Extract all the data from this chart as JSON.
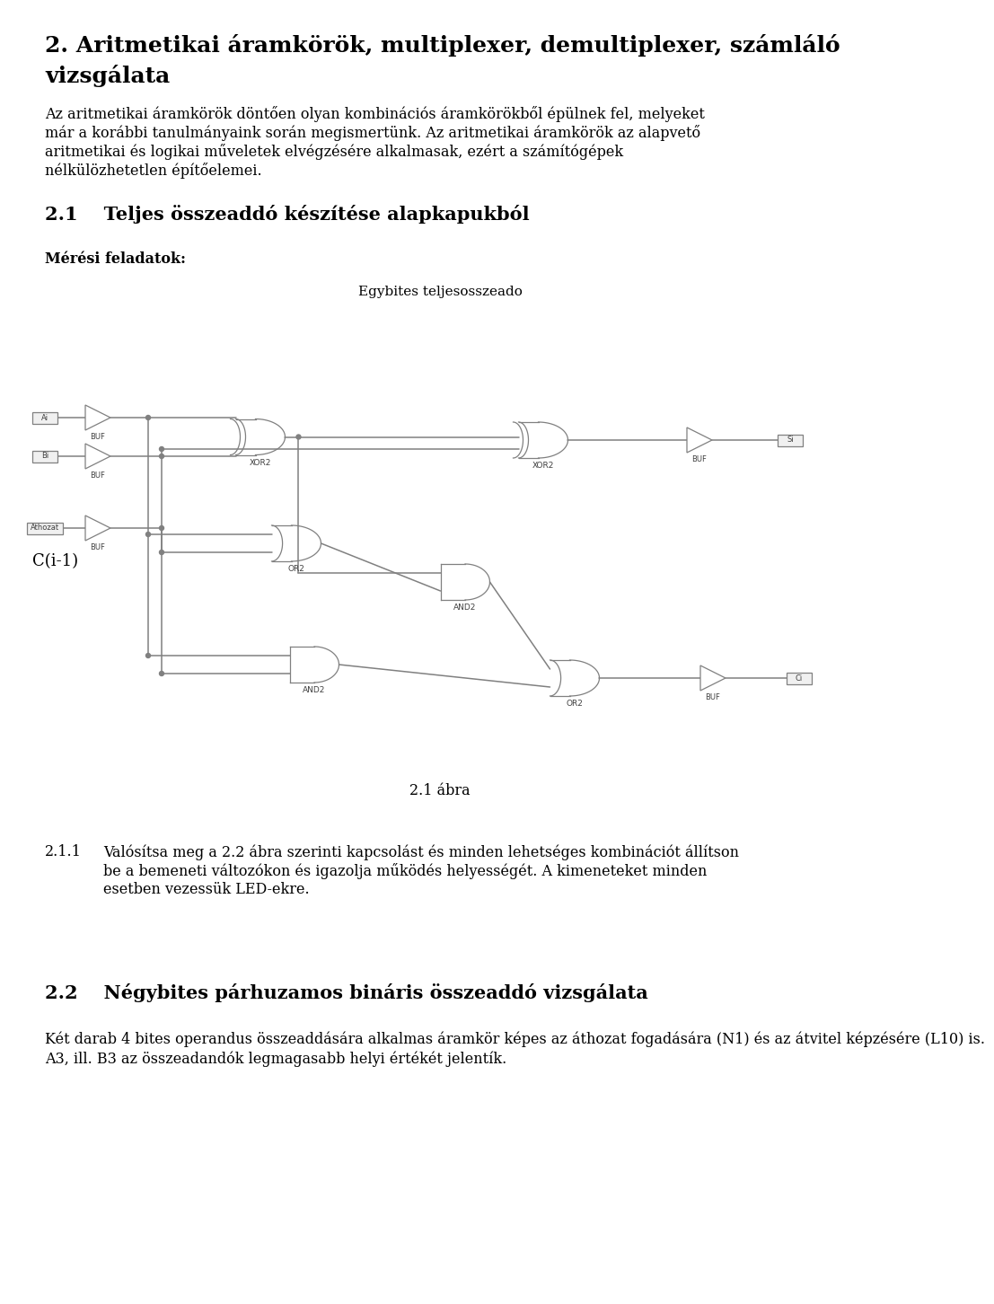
{
  "title1": "2. Aritmetikai áramkörök, multiplexer, demultiplexer, számláló",
  "title1b": "vizsgálata",
  "body1": "Az aritmetikai áramkörök döntően olyan kombinációs áramkörökből épülnek fel, melyeket már a korábbi tanulmányaink során megismertünk. Az aritmetikai áramkörök az alapvető aritmetikai és logikai műveletek elvégzésére alkalmasak, ezért a számítógépek nélkülözhetetlen építőelemei.",
  "section21": "2.1    Teljes összeaddó készítése alapkapukból",
  "meresi": "Mérési feladatok:",
  "circuit_title": "Egybites teljesosszeado",
  "fig_label": "2.1 ábra",
  "task211_num": "2.1.1",
  "task211_text": "Valósítsa meg a 2.2 ábra szerinti kapcsolást és minden lehetséges kombinációt állítson be a bemeneti változókon és igazolja működés helyességét. A kimeneteket minden esetben vezessük LED-ekre.",
  "section22": "2.2    Négybites párhuzamos bináris összeaddó vizsgálata",
  "body22a": "Két darab 4 bites operandus összeaddására alkalmas áramkör képes az áthozat fogadására (N1) és az átvitel képzésére (L10) is.",
  "body22b": "A3, ill. B3 az összeadandók legmagasabb helyi értékét jelentík.",
  "bg_color": "#ffffff",
  "text_color": "#000000",
  "line_color": "#808080",
  "gate_color": "#a0a0a0"
}
